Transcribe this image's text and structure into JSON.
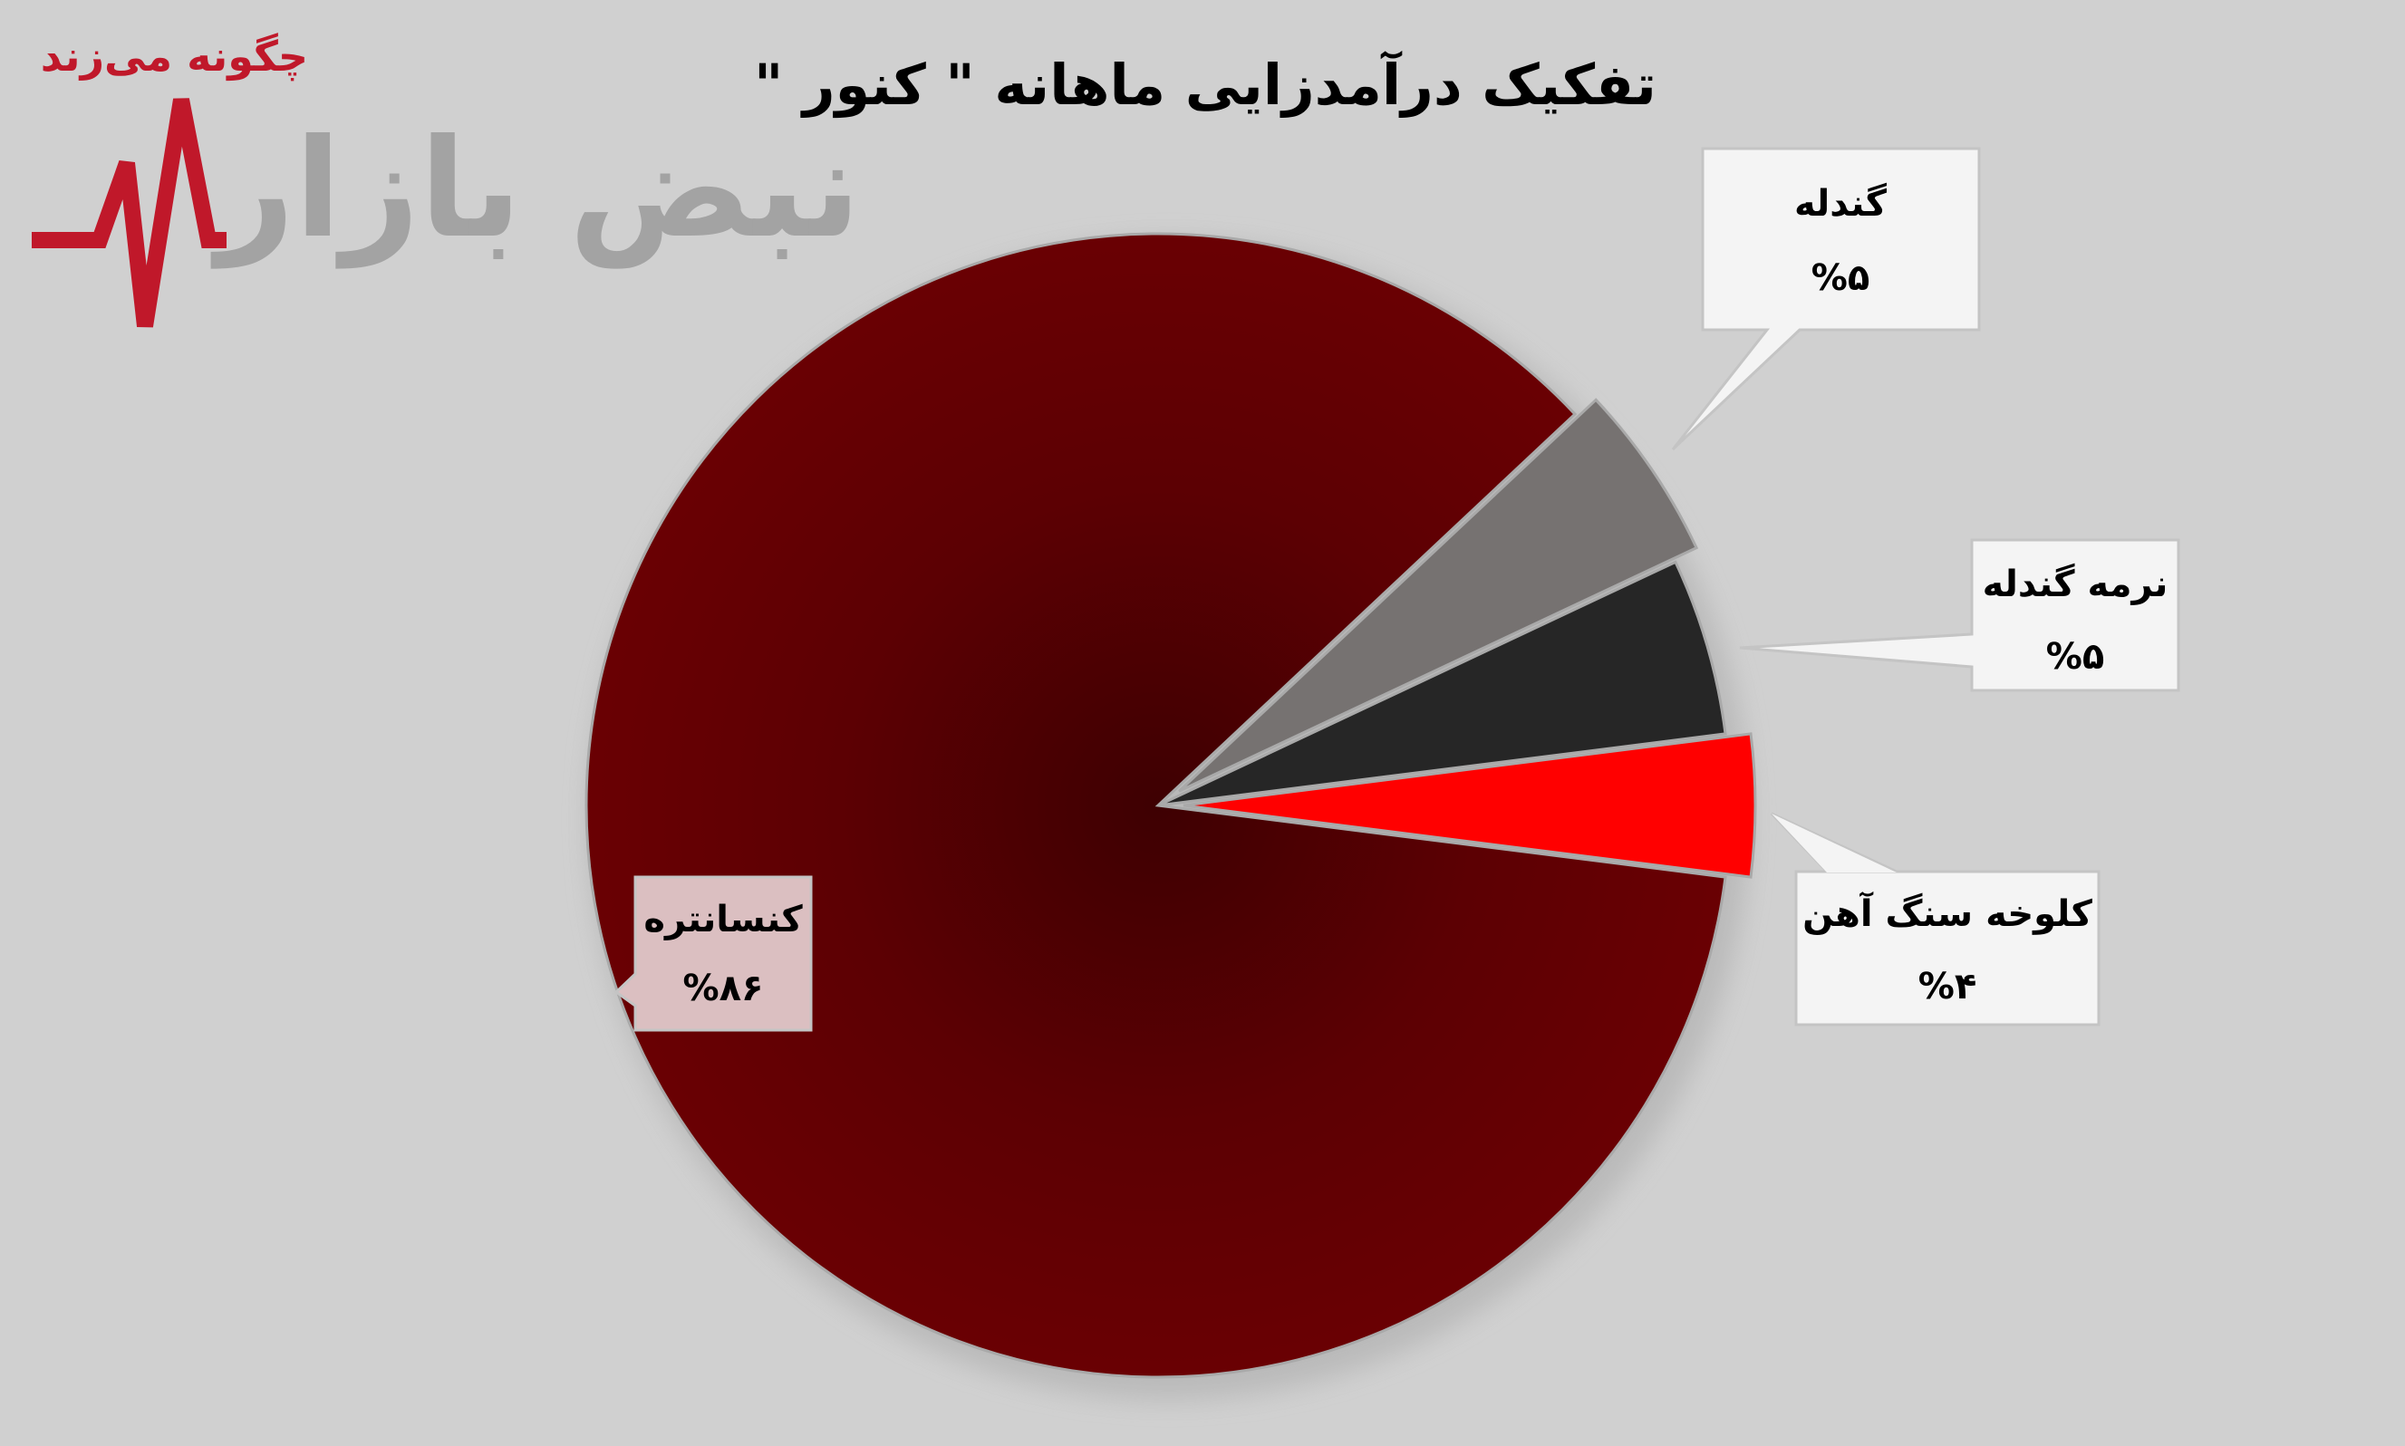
{
  "logo": {
    "tagline": "چگونه می‌زند",
    "name": "نبض بازار"
  },
  "chart_data": {
    "type": "pie",
    "title": "تفکیک درآمدزایی ماهانه \" کنور \"",
    "slices": [
      {
        "label": "گندله",
        "value": 5,
        "value_label": "%۵",
        "color": "#767271",
        "exploded": true
      },
      {
        "label": "نرمه گندله",
        "value": 5,
        "value_label": "%۵",
        "color": "#262626",
        "exploded": false
      },
      {
        "label": "کلوخه سنگ آهن",
        "value": 4,
        "value_label": "%۴",
        "color": "#ff0000",
        "exploded": true
      },
      {
        "label": "کنسانتره",
        "value": 86,
        "value_label": "%۸۶",
        "color": "#6a0003",
        "exploded": false
      }
    ],
    "legend": "none",
    "data_labels": "callouts"
  }
}
